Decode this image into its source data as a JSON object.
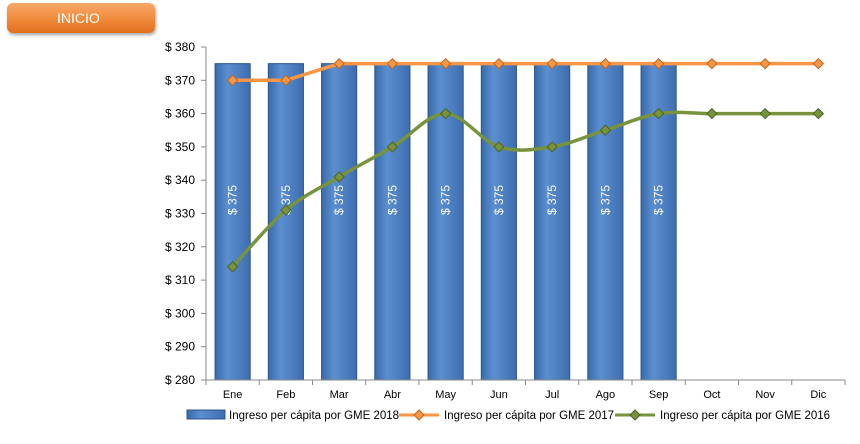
{
  "nav": {
    "inicio_label": "INICIO"
  },
  "colors": {
    "series_2018": "#4f81bd",
    "series_2017": "#f79646",
    "series_2016": "#77933c",
    "axis": "#888888"
  },
  "chart_data": {
    "type": "bar",
    "categories": [
      "Ene",
      "Feb",
      "Mar",
      "Abr",
      "May",
      "Jun",
      "Jul",
      "Ago",
      "Sep",
      "Oct",
      "Nov",
      "Dic"
    ],
    "ylim": [
      280,
      380
    ],
    "yticks": [
      "$ 380",
      "$ 370",
      "$ 360",
      "$ 350",
      "$ 340",
      "$ 330",
      "$ 320",
      "$ 310",
      "$ 300",
      "$ 290",
      "$ 280"
    ],
    "ytick_values": [
      380,
      370,
      360,
      350,
      340,
      330,
      320,
      310,
      300,
      290,
      280
    ],
    "grid": false,
    "legend_position": "bottom",
    "series": [
      {
        "name": "Ingreso per cápita por GME 2018",
        "type": "bar",
        "values": [
          375,
          375,
          375,
          375,
          375,
          375,
          375,
          375,
          375,
          null,
          null,
          null
        ],
        "data_labels": [
          "$ 375",
          "$ 375",
          "$ 375",
          "$ 375",
          "$ 375",
          "$ 375",
          "$ 375",
          "$ 375",
          "$ 375"
        ]
      },
      {
        "name": "Ingreso per cápita por GME 2017",
        "type": "line",
        "values": [
          370,
          370,
          375,
          375,
          375,
          375,
          375,
          375,
          375,
          375,
          375,
          375
        ]
      },
      {
        "name": "Ingreso per cápita por GME 2016",
        "type": "line",
        "values": [
          314,
          331,
          341,
          350,
          360,
          350,
          350,
          355,
          360,
          360,
          360,
          360
        ]
      }
    ]
  }
}
